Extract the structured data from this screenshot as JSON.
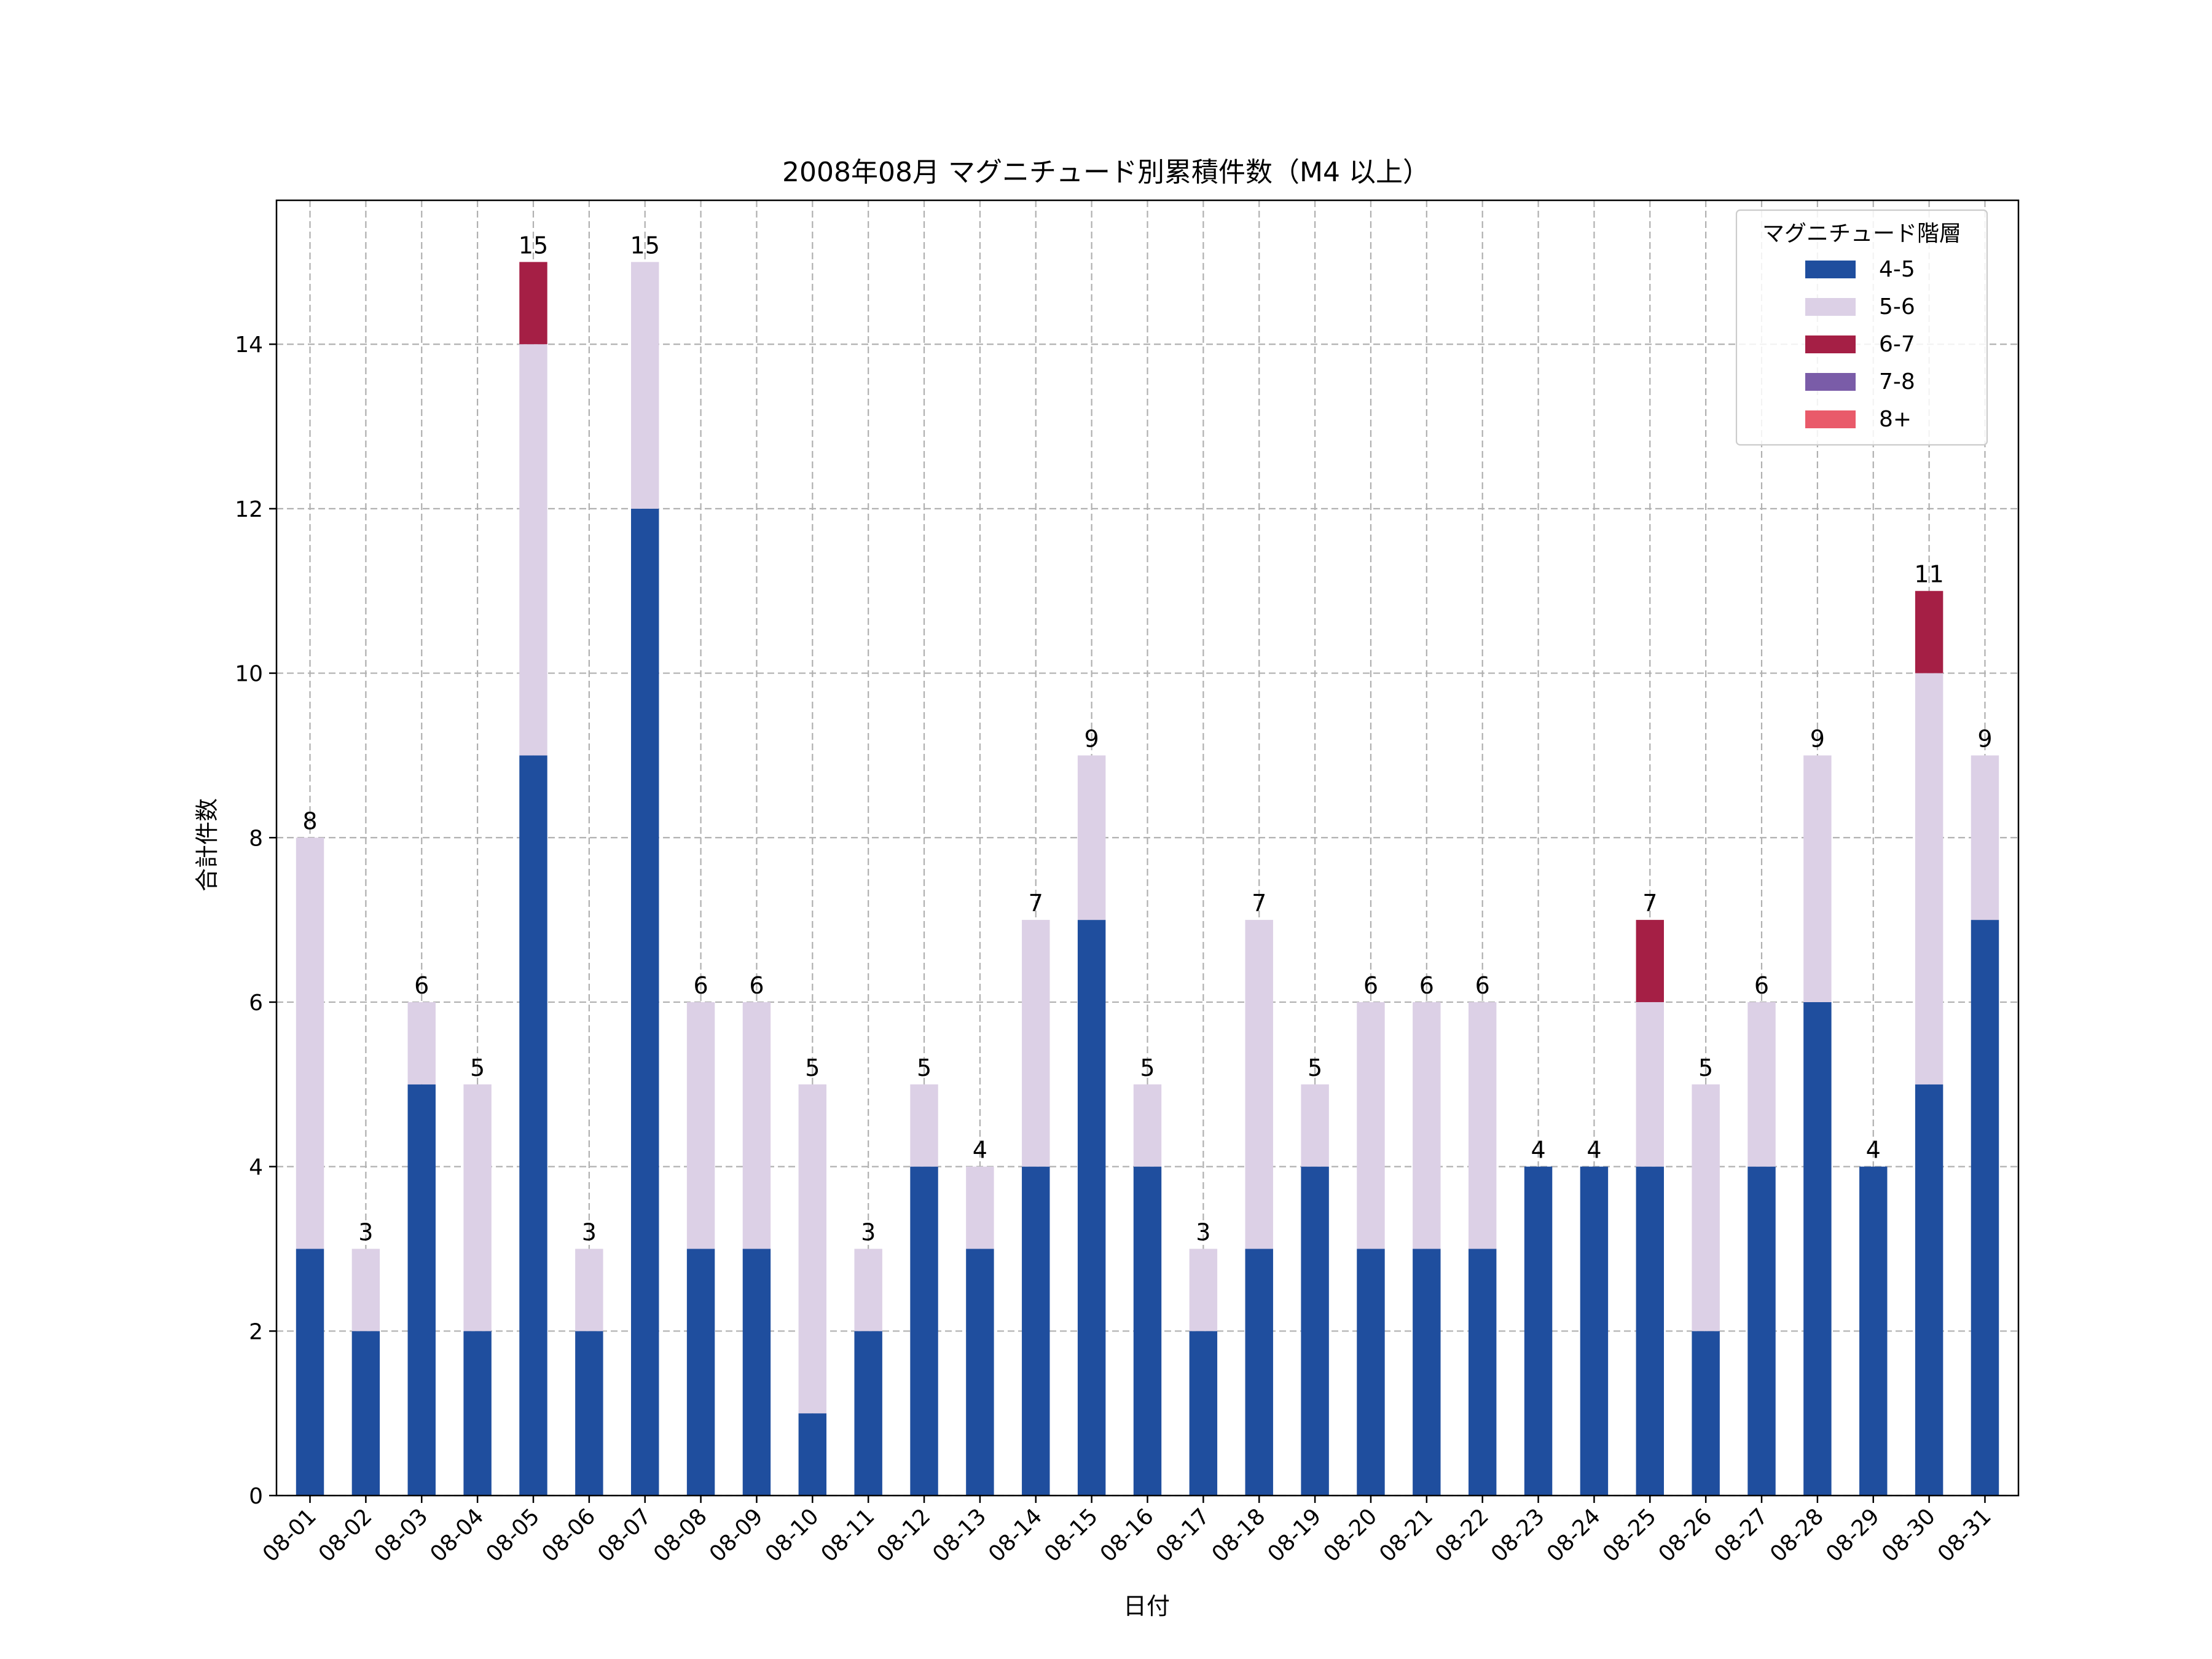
{
  "chart_data": {
    "type": "bar",
    "stacked": true,
    "title": "2008年08月 マグニチュード別累積件数（M4 以上）",
    "xlabel": "日付",
    "ylabel": "合計件数",
    "ylim": [
      0,
      15.75
    ],
    "yticks": [
      0,
      2,
      4,
      6,
      8,
      10,
      12,
      14
    ],
    "grid": true,
    "legend": {
      "title": "マグニチュード階層",
      "position": "top-right"
    },
    "categories": [
      "08-01",
      "08-02",
      "08-03",
      "08-04",
      "08-05",
      "08-06",
      "08-07",
      "08-08",
      "08-09",
      "08-10",
      "08-11",
      "08-12",
      "08-13",
      "08-14",
      "08-15",
      "08-16",
      "08-17",
      "08-18",
      "08-19",
      "08-20",
      "08-21",
      "08-22",
      "08-23",
      "08-24",
      "08-25",
      "08-26",
      "08-27",
      "08-28",
      "08-29",
      "08-30",
      "08-31"
    ],
    "series": [
      {
        "name": "4-5",
        "color": "#1f4e9e",
        "values": [
          3,
          2,
          5,
          2,
          9,
          2,
          12,
          3,
          3,
          1,
          2,
          4,
          3,
          4,
          7,
          4,
          2,
          3,
          4,
          3,
          3,
          3,
          4,
          4,
          4,
          2,
          4,
          6,
          4,
          5,
          7
        ]
      },
      {
        "name": "5-6",
        "color": "#dcd0e6",
        "values": [
          5,
          1,
          1,
          3,
          5,
          1,
          3,
          3,
          3,
          4,
          1,
          1,
          1,
          3,
          2,
          1,
          1,
          4,
          1,
          3,
          3,
          3,
          0,
          0,
          2,
          3,
          2,
          3,
          0,
          5,
          2
        ]
      },
      {
        "name": "6-7",
        "color": "#a51f45",
        "values": [
          0,
          0,
          0,
          0,
          1,
          0,
          0,
          0,
          0,
          0,
          0,
          0,
          0,
          0,
          0,
          0,
          0,
          0,
          0,
          0,
          0,
          0,
          0,
          0,
          1,
          0,
          0,
          0,
          0,
          1,
          0
        ]
      },
      {
        "name": "7-8",
        "color": "#7a5ca8",
        "values": [
          0,
          0,
          0,
          0,
          0,
          0,
          0,
          0,
          0,
          0,
          0,
          0,
          0,
          0,
          0,
          0,
          0,
          0,
          0,
          0,
          0,
          0,
          0,
          0,
          0,
          0,
          0,
          0,
          0,
          0,
          0
        ]
      },
      {
        "name": "8+",
        "color": "#e95a6a",
        "values": [
          0,
          0,
          0,
          0,
          0,
          0,
          0,
          0,
          0,
          0,
          0,
          0,
          0,
          0,
          0,
          0,
          0,
          0,
          0,
          0,
          0,
          0,
          0,
          0,
          0,
          0,
          0,
          0,
          0,
          0,
          0
        ]
      }
    ],
    "totals": [
      8,
      3,
      6,
      5,
      15,
      3,
      15,
      6,
      6,
      5,
      3,
      5,
      4,
      7,
      9,
      5,
      3,
      7,
      5,
      6,
      6,
      6,
      4,
      4,
      7,
      5,
      6,
      9,
      4,
      11,
      9
    ]
  }
}
